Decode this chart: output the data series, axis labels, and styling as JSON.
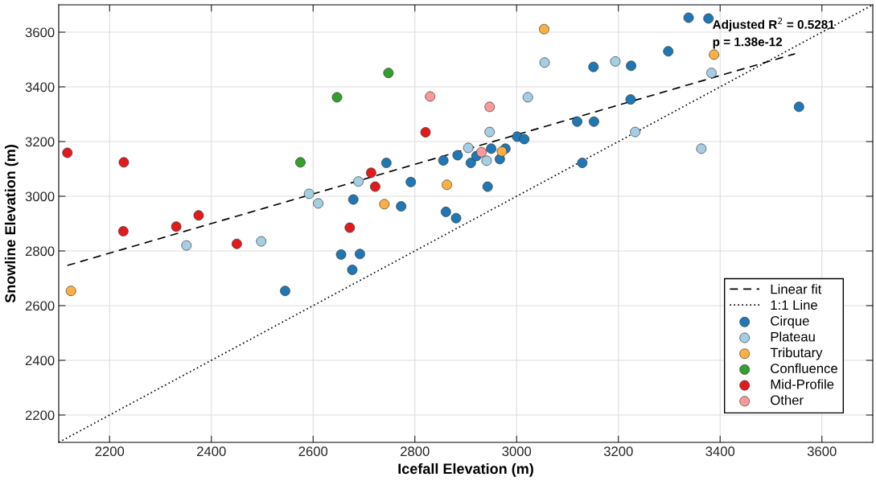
{
  "chart_data": {
    "type": "scatter",
    "xlabel": "Icefall Elevation (m)",
    "ylabel": "Snowline Elevation (m)",
    "xlim": [
      2100,
      3700
    ],
    "ylim": [
      2100,
      3700
    ],
    "xticks": [
      2200,
      2400,
      2600,
      2800,
      3000,
      3200,
      3400,
      3600
    ],
    "yticks": [
      2200,
      2400,
      2600,
      2800,
      3000,
      3200,
      3400,
      3600
    ],
    "grid": true,
    "legend": "bottom right",
    "marker": "circle",
    "annotations": [
      "Adjusted R$^{2}$ = 0.5281",
      "p = 1.38e-12"
    ],
    "series": [
      {
        "name": "Linear fit",
        "type": "line",
        "marker": "none",
        "line_style": "dashed",
        "color": "#000000",
        "x": [
          2117,
          3547
        ],
        "values": [
          2747,
          3521
        ]
      },
      {
        "name": "1:1 Line",
        "type": "line",
        "marker": "none",
        "line_style": "dotted",
        "color": "#000000",
        "x": [
          2100,
          3700
        ],
        "values": [
          2100,
          3700
        ]
      },
      {
        "name": "Cirque",
        "color": "#1f78b4",
        "x": [
          3338,
          3377,
          3298,
          3151,
          3225,
          3224,
          3555,
          3119,
          3152,
          3129,
          3001,
          3015,
          2856,
          2884,
          2910,
          2921,
          2950,
          2978,
          2967,
          2943,
          2861,
          2881,
          2744,
          2792,
          2679,
          2773,
          2655,
          2692,
          2677,
          2545
        ],
        "values": [
          3653,
          3650,
          3530,
          3473,
          3477,
          3354,
          3327,
          3273,
          3273,
          3122,
          3218,
          3209,
          3131,
          3150,
          3122,
          3147,
          3174,
          3174,
          3136,
          3035,
          2943,
          2920,
          3122,
          3052,
          2988,
          2963,
          2787,
          2789,
          2731,
          2654
        ]
      },
      {
        "name": "Plateau",
        "color": "#a6cee3",
        "x": [
          3055,
          3194,
          3383,
          3022,
          2947,
          3233,
          3363,
          2905,
          2941,
          2689,
          2592,
          2610,
          2351,
          2498
        ],
        "values": [
          3489,
          3493,
          3451,
          3362,
          3235,
          3235,
          3174,
          3177,
          3130,
          3054,
          3009,
          2974,
          2820,
          2835
        ]
      },
      {
        "name": "Tributary",
        "color": "#fdb042",
        "x": [
          3054,
          3388,
          2971,
          2863,
          2740,
          2124
        ],
        "values": [
          3611,
          3518,
          3164,
          3042,
          2971,
          2654
        ]
      },
      {
        "name": "Confluence",
        "color": "#33a02c",
        "x": [
          2748,
          2647,
          2575
        ],
        "values": [
          3451,
          3362,
          3124
        ]
      },
      {
        "name": "Mid-Profile",
        "color": "#e31a1c",
        "x": [
          2117,
          2228,
          2821,
          2714,
          2722,
          2375,
          2331,
          2227,
          2450,
          2672
        ],
        "values": [
          3159,
          3124,
          3234,
          3086,
          3035,
          2930,
          2889,
          2872,
          2826,
          2885
        ]
      },
      {
        "name": "Other",
        "color": "#fb9a99",
        "x": [
          2830,
          2947,
          2931
        ],
        "values": [
          3365,
          3327,
          3161
        ]
      }
    ]
  }
}
